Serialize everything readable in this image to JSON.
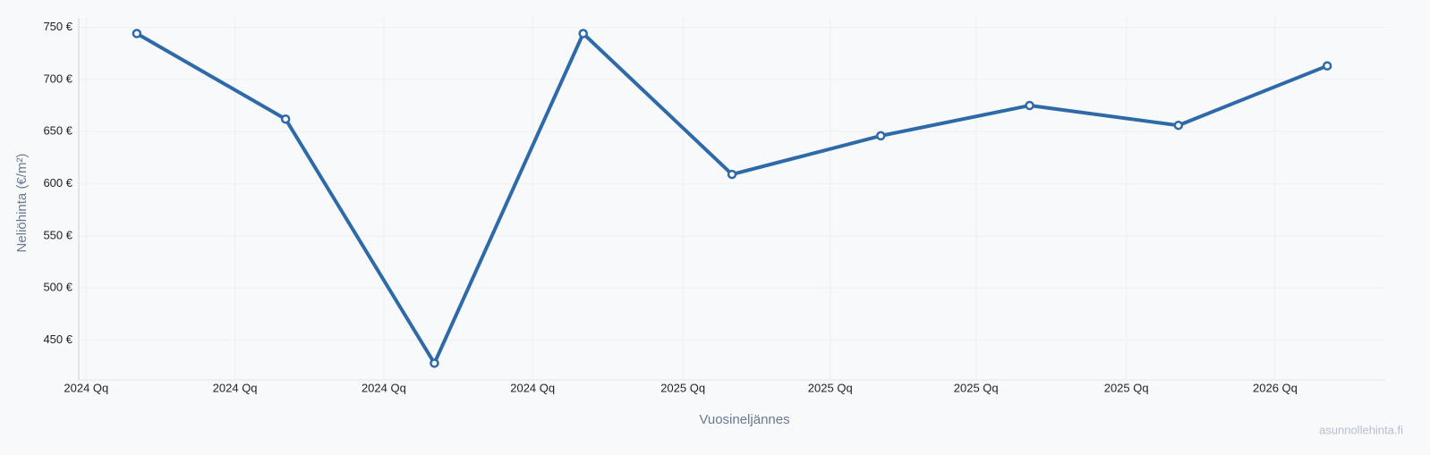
{
  "chart_data": {
    "type": "line",
    "x_label": "Vuosineljännes",
    "y_label": "Neliöhinta (€/m²)",
    "watermark": "asunnollehinta.fi",
    "x": [
      0,
      1,
      2,
      3,
      4,
      5,
      6,
      7,
      8
    ],
    "series": [
      {
        "color": "#2f6aa8",
        "values": [
          744,
          662,
          428,
          744,
          609,
          646,
          675,
          656,
          713
        ]
      }
    ],
    "xlim": [
      -0.39,
      8.39
    ],
    "xticks": [
      {
        "value": -0.34,
        "label": "2024 Qq"
      },
      {
        "value": 0.66,
        "label": "2024 Qq"
      },
      {
        "value": 1.66,
        "label": "2024 Qq"
      },
      {
        "value": 2.66,
        "label": "2024 Qq"
      },
      {
        "value": 3.67,
        "label": "2025 Qq"
      },
      {
        "value": 4.66,
        "label": "2025 Qq"
      },
      {
        "value": 5.64,
        "label": "2025 Qq"
      },
      {
        "value": 6.65,
        "label": "2025 Qq"
      },
      {
        "value": 7.65,
        "label": "2026 Qq"
      }
    ],
    "ylim": [
      412,
      759
    ],
    "yticks": [
      {
        "value": 450,
        "label": "450 €"
      },
      {
        "value": 500,
        "label": "500 €"
      },
      {
        "value": 550,
        "label": "550 €"
      },
      {
        "value": 600,
        "label": "600 €"
      },
      {
        "value": 650,
        "label": "650 €"
      },
      {
        "value": 700,
        "label": "700 €"
      },
      {
        "value": 750,
        "label": "750 €"
      }
    ],
    "grid": true
  }
}
